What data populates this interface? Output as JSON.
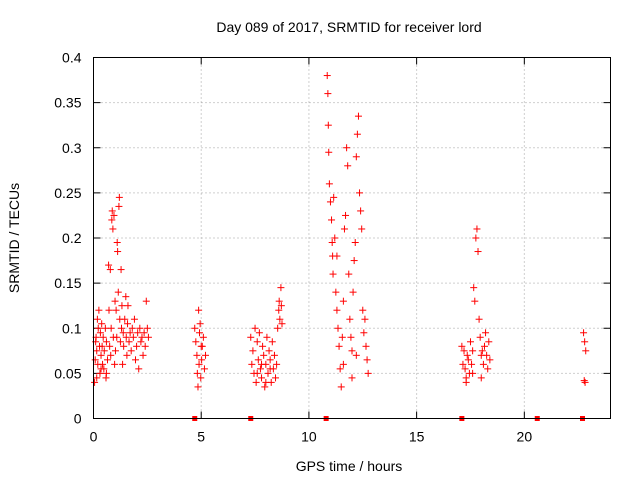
{
  "chart_data": {
    "type": "scatter",
    "title": "Day 089 of 2017, SRMTID for receiver lord",
    "xlabel": "GPS time / hours",
    "ylabel": "SRMTID / TECUs",
    "xlim": [
      0,
      24
    ],
    "ylim": [
      0,
      0.4
    ],
    "x_ticks": [
      0,
      5,
      10,
      15,
      20
    ],
    "x_tick_labels": [
      "0",
      "5",
      "10",
      "15",
      "20"
    ],
    "y_ticks": [
      0,
      0.05,
      0.1,
      0.15,
      0.2,
      0.25,
      0.3,
      0.35,
      0.4
    ],
    "y_tick_labels": [
      "0",
      "0.05",
      "0.1",
      "0.15",
      "0.2",
      "0.25",
      "0.3",
      "0.35",
      "0.4"
    ],
    "grid": true,
    "marker": "+",
    "color": "#ff0000",
    "series": [
      {
        "name": "SRMTID",
        "points": [
          [
            0.05,
            0.04
          ],
          [
            0.08,
            0.065
          ],
          [
            0.1,
            0.085
          ],
          [
            0.12,
            0.09
          ],
          [
            0.15,
            0.075
          ],
          [
            0.18,
            0.11
          ],
          [
            0.2,
            0.06
          ],
          [
            0.22,
            0.1
          ],
          [
            0.25,
            0.12
          ],
          [
            0.28,
            0.08
          ],
          [
            0.3,
            0.05
          ],
          [
            0.32,
            0.095
          ],
          [
            0.35,
            0.07
          ],
          [
            0.38,
            0.105
          ],
          [
            0.4,
            0.08
          ],
          [
            0.42,
            0.06
          ],
          [
            0.45,
            0.09
          ],
          [
            0.48,
            0.055
          ],
          [
            0.5,
            0.075
          ],
          [
            0.55,
            0.1
          ],
          [
            0.58,
            0.045
          ],
          [
            0.6,
            0.085
          ],
          [
            0.65,
            0.065
          ],
          [
            0.7,
            0.17
          ],
          [
            0.72,
            0.12
          ],
          [
            0.75,
            0.08
          ],
          [
            0.78,
            0.165
          ],
          [
            0.8,
            0.07
          ],
          [
            0.82,
            0.1
          ],
          [
            0.85,
            0.22
          ],
          [
            0.87,
            0.23
          ],
          [
            0.9,
            0.21
          ],
          [
            0.92,
            0.09
          ],
          [
            0.95,
            0.225
          ],
          [
            0.98,
            0.06
          ],
          [
            1.0,
            0.13
          ],
          [
            1.02,
            0.075
          ],
          [
            1.05,
            0.12
          ],
          [
            1.08,
            0.09
          ],
          [
            1.1,
            0.195
          ],
          [
            1.12,
            0.185
          ],
          [
            1.15,
            0.14
          ],
          [
            1.18,
            0.235
          ],
          [
            1.2,
            0.245
          ],
          [
            1.22,
            0.11
          ],
          [
            1.25,
            0.085
          ],
          [
            1.28,
            0.165
          ],
          [
            1.3,
            0.1
          ],
          [
            1.32,
            0.125
          ],
          [
            1.35,
            0.06
          ],
          [
            1.38,
            0.095
          ],
          [
            1.4,
            0.08
          ],
          [
            1.45,
            0.11
          ],
          [
            1.5,
            0.135
          ],
          [
            1.52,
            0.09
          ],
          [
            1.55,
            0.07
          ],
          [
            1.58,
            0.105
          ],
          [
            1.6,
            0.125
          ],
          [
            1.65,
            0.085
          ],
          [
            1.7,
            0.095
          ],
          [
            1.75,
            0.075
          ],
          [
            1.8,
            0.1
          ],
          [
            1.85,
            0.09
          ],
          [
            1.9,
            0.11
          ],
          [
            1.95,
            0.065
          ],
          [
            2.0,
            0.08
          ],
          [
            2.05,
            0.095
          ],
          [
            2.1,
            0.055
          ],
          [
            2.15,
            0.1
          ],
          [
            2.2,
            0.085
          ],
          [
            2.25,
            0.09
          ],
          [
            2.3,
            0.07
          ],
          [
            2.35,
            0.095
          ],
          [
            2.4,
            0.08
          ],
          [
            2.45,
            0.13
          ],
          [
            2.5,
            0.1
          ],
          [
            2.55,
            0.09
          ],
          [
            0.15,
            0.045
          ],
          [
            0.35,
            0.055
          ],
          [
            0.6,
            0.05
          ],
          [
            4.7,
            0.1
          ],
          [
            4.75,
            0.085
          ],
          [
            4.8,
            0.07
          ],
          [
            4.82,
            0.05
          ],
          [
            4.85,
            0.035
          ],
          [
            4.88,
            0.12
          ],
          [
            4.9,
            0.06
          ],
          [
            4.92,
            0.095
          ],
          [
            4.95,
            0.105
          ],
          [
            4.98,
            0.045
          ],
          [
            5.0,
            0.08
          ],
          [
            5.02,
            0.065
          ],
          [
            5.05,
            0.08
          ],
          [
            5.1,
            0.09
          ],
          [
            5.15,
            0.055
          ],
          [
            5.2,
            0.07
          ],
          [
            7.3,
            0.09
          ],
          [
            7.35,
            0.06
          ],
          [
            7.4,
            0.075
          ],
          [
            7.45,
            0.05
          ],
          [
            7.5,
            0.1
          ],
          [
            7.55,
            0.04
          ],
          [
            7.6,
            0.085
          ],
          [
            7.65,
            0.065
          ],
          [
            7.7,
            0.095
          ],
          [
            7.75,
            0.055
          ],
          [
            7.8,
            0.045
          ],
          [
            7.85,
            0.08
          ],
          [
            7.9,
            0.07
          ],
          [
            7.95,
            0.035
          ],
          [
            8.0,
            0.06
          ],
          [
            8.05,
            0.09
          ],
          [
            8.1,
            0.05
          ],
          [
            8.15,
            0.075
          ],
          [
            8.2,
            0.065
          ],
          [
            8.25,
            0.04
          ],
          [
            8.3,
            0.085
          ],
          [
            8.35,
            0.055
          ],
          [
            8.4,
            0.07
          ],
          [
            8.45,
            0.045
          ],
          [
            8.5,
            0.06
          ],
          [
            8.55,
            0.1
          ],
          [
            8.6,
            0.12
          ],
          [
            8.62,
            0.13
          ],
          [
            8.65,
            0.11
          ],
          [
            8.7,
            0.145
          ],
          [
            8.72,
            0.125
          ],
          [
            8.75,
            0.105
          ],
          [
            7.6,
            0.05
          ],
          [
            7.8,
            0.06
          ],
          [
            8.0,
            0.04
          ],
          [
            8.2,
            0.055
          ],
          [
            10.85,
            0.38
          ],
          [
            10.88,
            0.36
          ],
          [
            10.9,
            0.325
          ],
          [
            10.92,
            0.295
          ],
          [
            10.95,
            0.26
          ],
          [
            11.0,
            0.24
          ],
          [
            11.05,
            0.22
          ],
          [
            11.08,
            0.195
          ],
          [
            11.1,
            0.18
          ],
          [
            11.12,
            0.16
          ],
          [
            11.15,
            0.245
          ],
          [
            11.2,
            0.2
          ],
          [
            11.25,
            0.14
          ],
          [
            11.3,
            0.12
          ],
          [
            11.35,
            0.1
          ],
          [
            11.4,
            0.08
          ],
          [
            11.45,
            0.055
          ],
          [
            11.5,
            0.035
          ],
          [
            11.55,
            0.09
          ],
          [
            11.6,
            0.13
          ],
          [
            11.65,
            0.21
          ],
          [
            11.7,
            0.225
          ],
          [
            11.75,
            0.3
          ],
          [
            11.8,
            0.28
          ],
          [
            11.85,
            0.16
          ],
          [
            11.9,
            0.11
          ],
          [
            11.95,
            0.09
          ],
          [
            12.0,
            0.075
          ],
          [
            12.05,
            0.14
          ],
          [
            12.1,
            0.175
          ],
          [
            12.15,
            0.195
          ],
          [
            12.2,
            0.29
          ],
          [
            12.25,
            0.315
          ],
          [
            12.3,
            0.335
          ],
          [
            12.35,
            0.25
          ],
          [
            12.4,
            0.23
          ],
          [
            12.45,
            0.21
          ],
          [
            12.5,
            0.12
          ],
          [
            12.55,
            0.095
          ],
          [
            12.6,
            0.11
          ],
          [
            12.65,
            0.08
          ],
          [
            12.7,
            0.065
          ],
          [
            12.75,
            0.05
          ],
          [
            11.3,
            0.18
          ],
          [
            11.6,
            0.06
          ],
          [
            12.0,
            0.045
          ],
          [
            12.2,
            0.07
          ],
          [
            17.1,
            0.08
          ],
          [
            17.15,
            0.06
          ],
          [
            17.2,
            0.075
          ],
          [
            17.25,
            0.055
          ],
          [
            17.3,
            0.045
          ],
          [
            17.35,
            0.07
          ],
          [
            17.4,
            0.065
          ],
          [
            17.45,
            0.05
          ],
          [
            17.5,
            0.085
          ],
          [
            17.55,
            0.06
          ],
          [
            17.6,
            0.075
          ],
          [
            17.65,
            0.145
          ],
          [
            17.7,
            0.13
          ],
          [
            17.75,
            0.2
          ],
          [
            17.8,
            0.21
          ],
          [
            17.85,
            0.185
          ],
          [
            17.9,
            0.11
          ],
          [
            17.95,
            0.09
          ],
          [
            18.0,
            0.07
          ],
          [
            18.05,
            0.075
          ],
          [
            18.1,
            0.06
          ],
          [
            18.15,
            0.08
          ],
          [
            18.2,
            0.095
          ],
          [
            18.25,
            0.07
          ],
          [
            18.3,
            0.055
          ],
          [
            18.35,
            0.085
          ],
          [
            18.4,
            0.065
          ],
          [
            17.3,
            0.04
          ],
          [
            17.6,
            0.05
          ],
          [
            18.0,
            0.045
          ],
          [
            22.75,
            0.095
          ],
          [
            22.8,
            0.085
          ],
          [
            22.85,
            0.075
          ],
          [
            22.82,
            0.04
          ],
          [
            22.78,
            0.042
          ]
        ]
      }
    ],
    "zero_markers_x": [
      4.7,
      7.3,
      10.8,
      17.1,
      20.6,
      22.7
    ]
  }
}
